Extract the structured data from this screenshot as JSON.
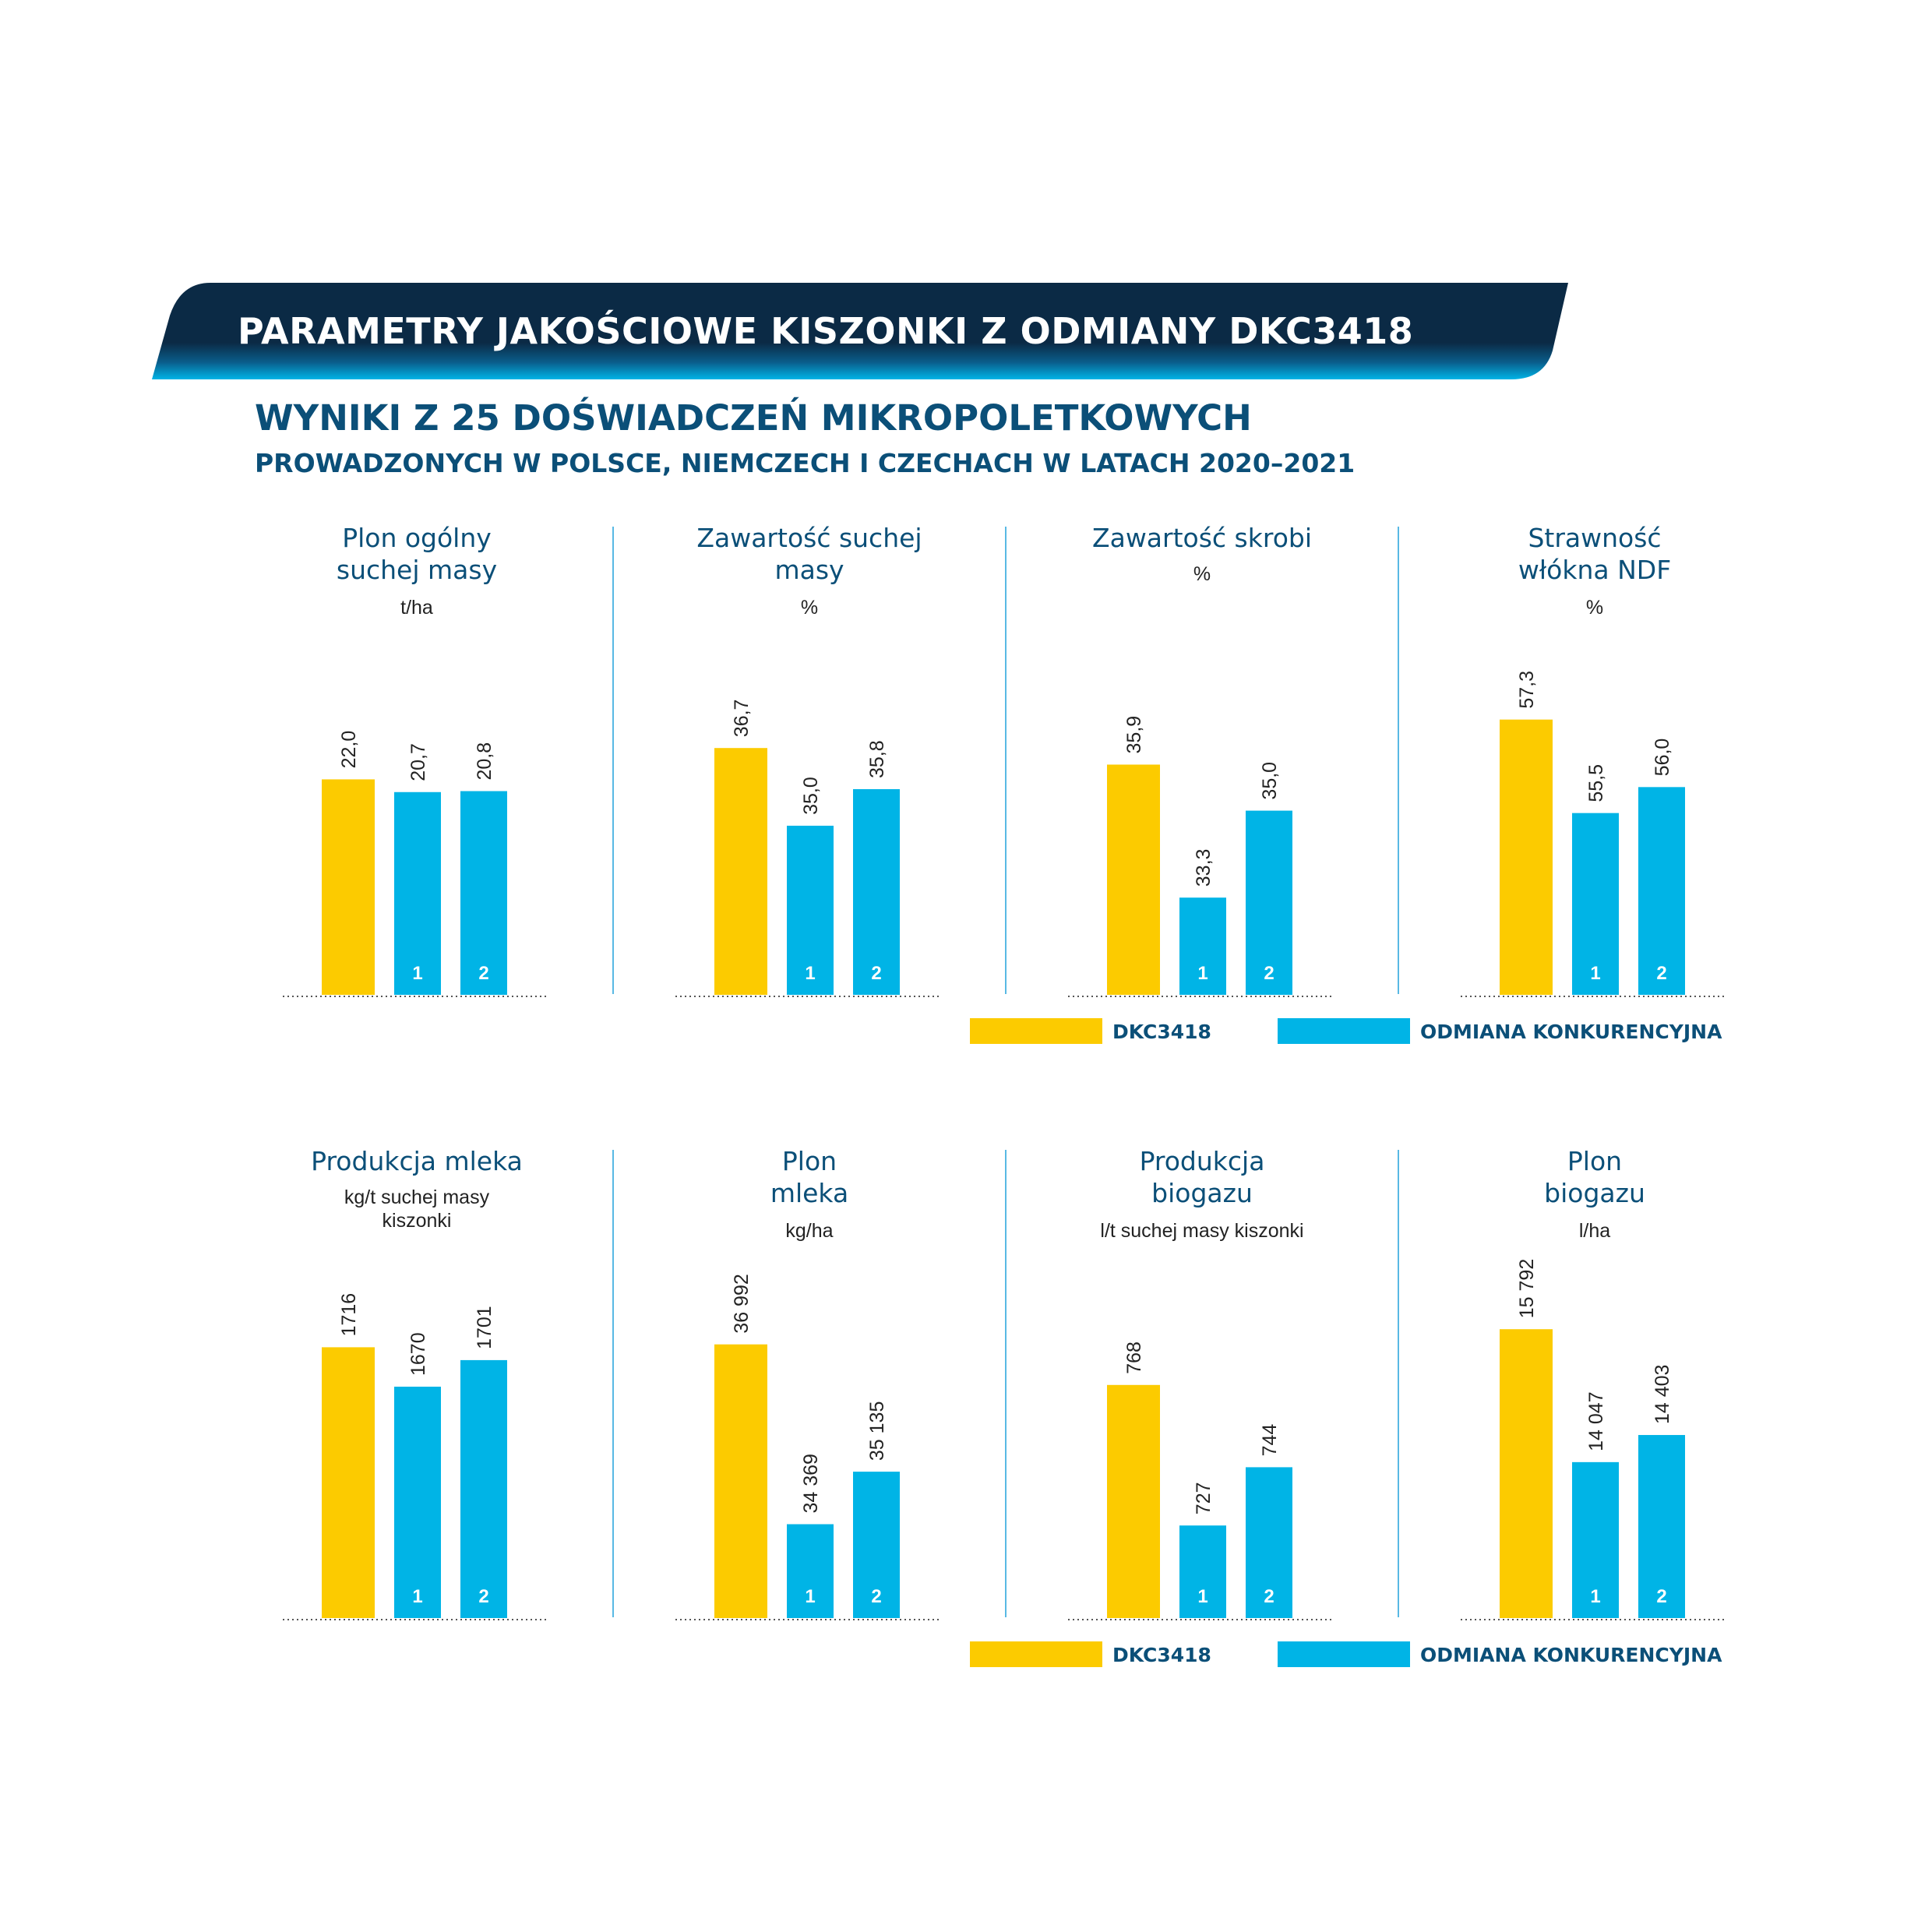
{
  "header": {
    "title": "PARAMETRY JAKOŚCIOWE KISZONKI Z ODMIANY DKC3418",
    "subtitle_line1": "WYNIKI Z 25 DOŚWIADCZEŃ MIKROPOLETKOWYCH",
    "subtitle_line2": "PROWADZONYCH W POLSCE, NIEMCZECH I CZECHACH W LATACH 2020–2021"
  },
  "colors": {
    "dkc": "#fccb00",
    "competitor": "#00b4e6",
    "text_primary": "#0b4f78",
    "banner_dark": "#0b2a45",
    "banner_light": "#00b4e6"
  },
  "legend": {
    "dkc_label": "DKC3418",
    "competitor_label": "ODMIANA KONKURENCYJNA"
  },
  "chart_data": [
    {
      "type": "bar",
      "title": "Plon ogólny\nsuchej masy",
      "ylabel": "t/ha",
      "categories": [
        "DKC3418",
        "1",
        "2"
      ],
      "values": [
        22.0,
        20.7,
        20.8
      ],
      "value_labels": [
        "22,0",
        "20,7",
        "20,8"
      ],
      "ylim": [
        0,
        35
      ]
    },
    {
      "type": "bar",
      "title": "Zawartość suchej\nmasy",
      "ylabel": "%",
      "categories": [
        "DKC3418",
        "1",
        "2"
      ],
      "values": [
        36.7,
        35.0,
        35.8
      ],
      "value_labels": [
        "36,7",
        "35,0",
        "35,8"
      ],
      "ylim": [
        31.3,
        38.8
      ]
    },
    {
      "type": "bar",
      "title": "Zawartość skrobi",
      "ylabel": "%",
      "categories": [
        "DKC3418",
        "1",
        "2"
      ],
      "values": [
        35.9,
        33.3,
        35.0
      ],
      "value_labels": [
        "35,9",
        "33,3",
        "35,0"
      ],
      "ylim": [
        31.4,
        38.1
      ]
    },
    {
      "type": "bar",
      "title": "Strawność\nwłókna NDF",
      "ylabel": "%",
      "categories": [
        "DKC3418",
        "1",
        "2"
      ],
      "values": [
        57.3,
        55.5,
        56.0
      ],
      "value_labels": [
        "57,3",
        "55,5",
        "56,0"
      ],
      "ylim": [
        52.0,
        58.6
      ]
    },
    {
      "type": "bar",
      "title": "Produkcja mleka",
      "ylabel": "kg/t suchej masy\nkiszonki",
      "categories": [
        "DKC3418",
        "1",
        "2"
      ],
      "values": [
        1716,
        1670,
        1701
      ],
      "value_labels": [
        "1716",
        "1670",
        "1701"
      ],
      "ylim": [
        1400,
        1800
      ]
    },
    {
      "type": "bar",
      "title": "Plon\nmleka",
      "ylabel": "kg/ha",
      "categories": [
        "DKC3418",
        "1",
        "2"
      ],
      "values": [
        36992,
        34369,
        35135
      ],
      "value_labels": [
        "36 992",
        "34 369",
        "35 135"
      ],
      "ylim": [
        33000,
        38000
      ]
    },
    {
      "type": "bar",
      "title": "Produkcja\nbiogazu",
      "ylabel": "l/t suchej masy kiszonki",
      "categories": [
        "DKC3418",
        "1",
        "2"
      ],
      "values": [
        768,
        727,
        744
      ],
      "value_labels": [
        "768",
        "727",
        "744"
      ],
      "ylim": [
        700,
        800
      ]
    },
    {
      "type": "bar",
      "title": "Plon\nbiogazu",
      "ylabel": "l/ha",
      "categories": [
        "DKC3418",
        "1",
        "2"
      ],
      "values": [
        15792,
        14047,
        14403
      ],
      "value_labels": [
        "15 792",
        "14 047",
        "14 403"
      ],
      "ylim": [
        12000,
        16500
      ]
    }
  ]
}
